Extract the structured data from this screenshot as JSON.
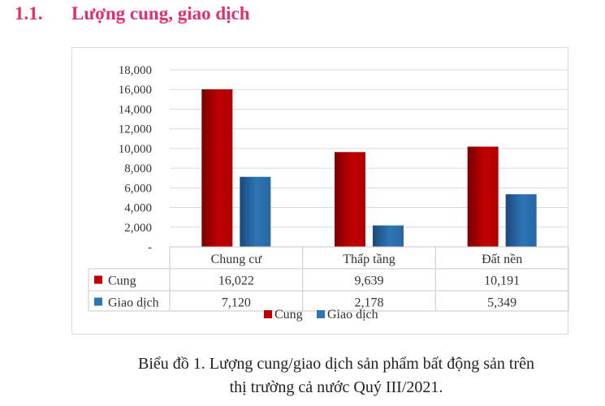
{
  "heading": {
    "number": "1.1.",
    "title": "Lượng cung, giao dịch"
  },
  "chart_data": {
    "type": "bar",
    "categories": [
      "Chung cư",
      "Thấp tầng",
      "Đất nền"
    ],
    "series": [
      {
        "name": "Cung",
        "values": [
          16022,
          9639,
          10191
        ],
        "labels": [
          "16,022",
          "9,639",
          "10,191"
        ],
        "color": "#c00000"
      },
      {
        "name": "Giao dịch",
        "values": [
          7120,
          2178,
          5349
        ],
        "labels": [
          "7,120",
          "2,178",
          "5,349"
        ],
        "color": "#2e75b6"
      }
    ],
    "ylim": [
      0,
      18000
    ],
    "y_ticks": [
      "-",
      "2,000",
      "4,000",
      "6,000",
      "8,000",
      "10,000",
      "12,000",
      "14,000",
      "16,000",
      "18,000"
    ],
    "grid": true,
    "legend": {
      "position": "bottom",
      "entries": [
        "Cung",
        "Giao dịch"
      ]
    },
    "data_table": true
  },
  "caption": {
    "line1": "Biểu đồ 1. Lượng cung/giao dịch sản phẩm bất động sản trên",
    "line2": "thị trường cả nước Quý III/2021."
  }
}
